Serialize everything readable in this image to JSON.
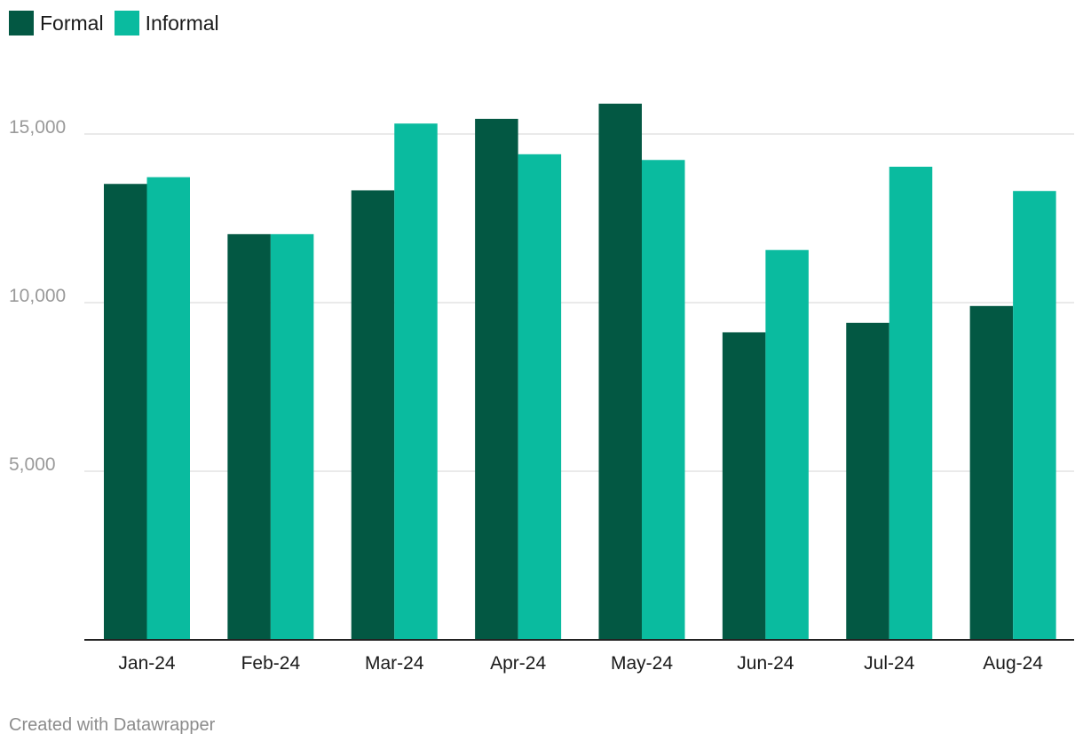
{
  "legend": {
    "items": [
      {
        "label": "Formal",
        "color": "#035843"
      },
      {
        "label": "Informal",
        "color": "#0abb9f"
      }
    ]
  },
  "footer": {
    "credit": "Created with Datawrapper"
  },
  "chart_data": {
    "type": "bar",
    "categories": [
      "Jan-24",
      "Feb-24",
      "Mar-24",
      "Apr-24",
      "May-24",
      "Jun-24",
      "Jul-24",
      "Aug-24"
    ],
    "series": [
      {
        "name": "Formal",
        "color": "#035843",
        "values": [
          13520,
          12030,
          13330,
          15450,
          15900,
          9120,
          9400,
          9900
        ]
      },
      {
        "name": "Informal",
        "color": "#0abb9f",
        "values": [
          13720,
          12030,
          15310,
          14400,
          14230,
          11560,
          14030,
          13310
        ]
      }
    ],
    "yticks": [
      5000,
      10000,
      15000
    ],
    "ytick_labels": [
      "5,000",
      "10,000",
      "15,000"
    ],
    "ylim": [
      0,
      16500
    ],
    "grid": true,
    "legend_position": "top-left"
  }
}
